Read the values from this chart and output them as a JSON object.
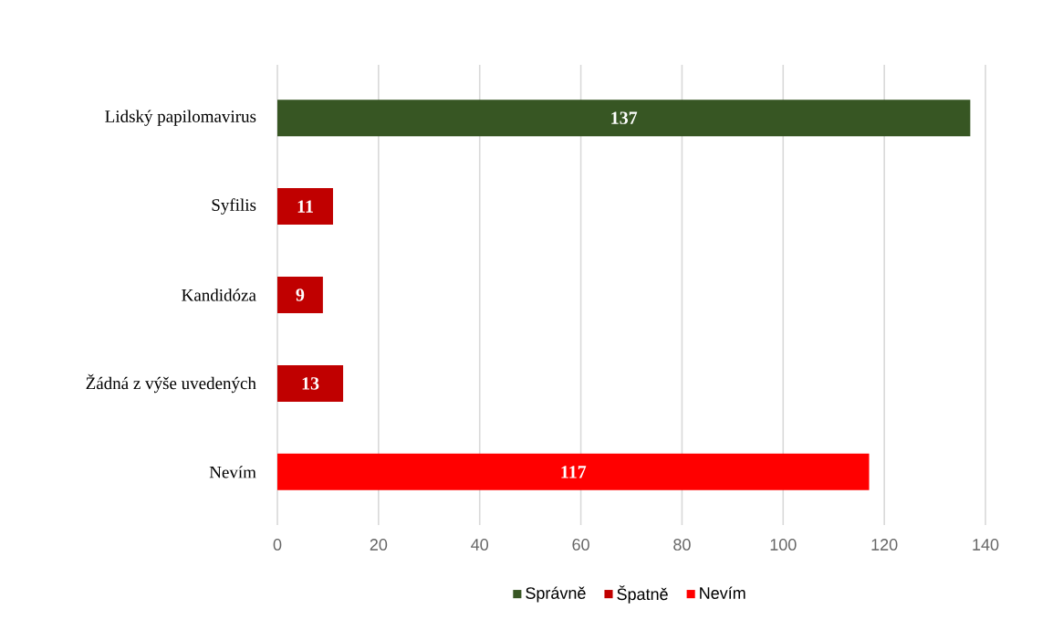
{
  "chart_data": {
    "type": "bar",
    "orientation": "horizontal",
    "categories": [
      "Lidský papilomavirus",
      "Syfilis",
      "Kandidóza",
      "Žádná z výše uvedených",
      "Nevím"
    ],
    "series": [
      {
        "name": "Správně",
        "color": "#375623",
        "values": [
          137,
          null,
          null,
          null,
          null
        ]
      },
      {
        "name": "Špatně",
        "color": "#c00000",
        "values": [
          null,
          11,
          9,
          13,
          null
        ]
      },
      {
        "name": "Nevím",
        "color": "#ff0000",
        "values": [
          null,
          null,
          null,
          null,
          117
        ]
      }
    ],
    "xlim": [
      0,
      140
    ],
    "xticks": [
      0,
      20,
      40,
      60,
      80,
      100,
      120,
      140
    ],
    "grid": "x",
    "legend": "bottom",
    "data_labels": true
  }
}
